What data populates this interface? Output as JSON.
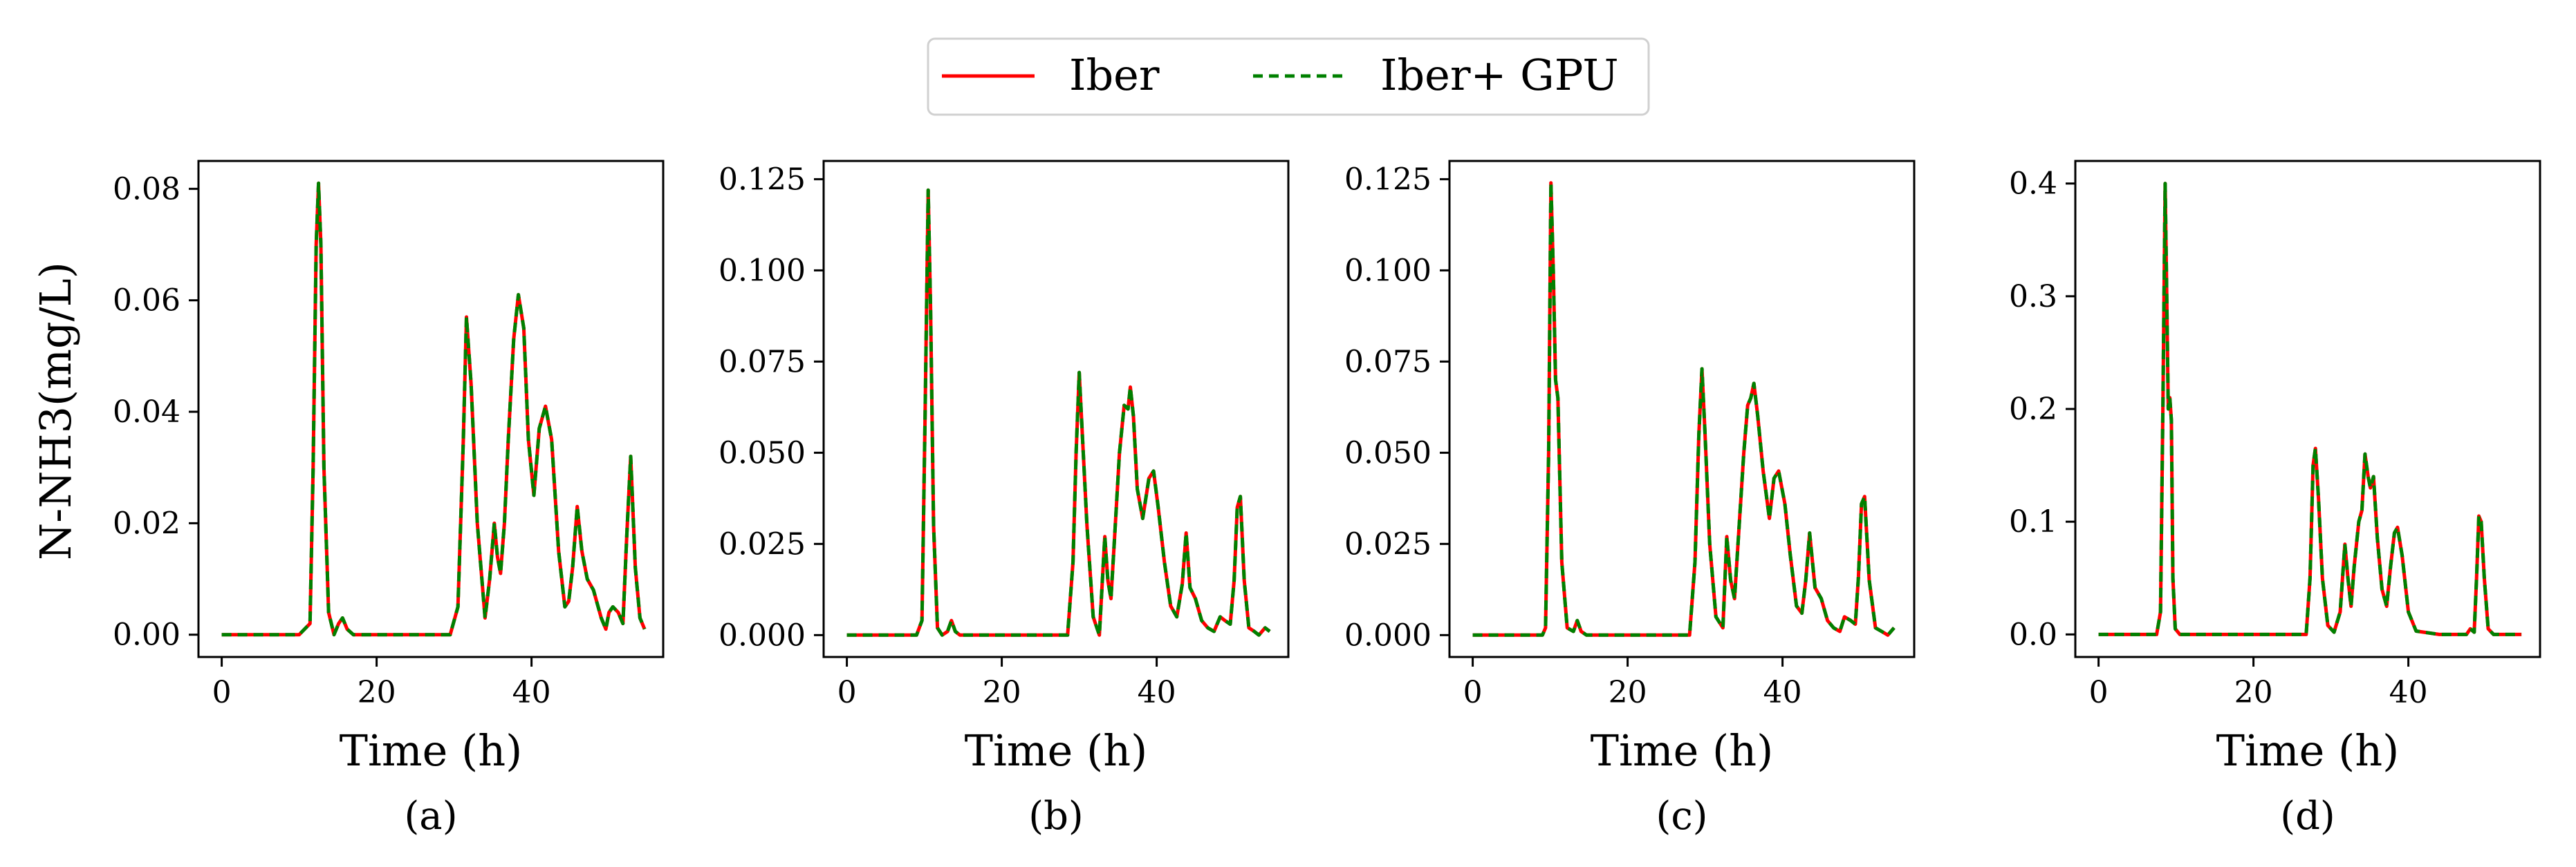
{
  "legend": {
    "entries": [
      {
        "label": "Iber",
        "color": "#ff0000",
        "style": "solid"
      },
      {
        "label": "Iber+ GPU",
        "color": "#008000",
        "style": "dashed"
      }
    ]
  },
  "ylabel": "N-NH3(mg/L)",
  "chart_data": [
    {
      "type": "line",
      "panel": "(a)",
      "xlabel": "Time (h)",
      "ylabel": "N-NH3(mg/L)",
      "xlim": [
        -3,
        57
      ],
      "ylim": [
        -0.004,
        0.085
      ],
      "xticks": [
        0,
        20,
        40
      ],
      "xtick_labels": [
        "0",
        "20",
        "40"
      ],
      "yticks": [
        0.0,
        0.02,
        0.04,
        0.06,
        0.08
      ],
      "ytick_labels": [
        "0.00",
        "0.02",
        "0.04",
        "0.06",
        "0.08"
      ],
      "series": [
        {
          "name": "Iber",
          "x": [
            0,
            10,
            11.4,
            11.8,
            12.2,
            12.5,
            12.8,
            13.2,
            13.8,
            14.5,
            15.1,
            15.6,
            16.2,
            17,
            20,
            29.5,
            30.5,
            31.2,
            31.6,
            32.2,
            33,
            34,
            34.6,
            35.2,
            35.6,
            36,
            36.5,
            37,
            37.7,
            38.3,
            39,
            39.6,
            40.3,
            41,
            41.8,
            42.6,
            43.5,
            44.3,
            44.8,
            45.3,
            45.9,
            46.5,
            47.2,
            48,
            49,
            49.6,
            50,
            50.5,
            51.2,
            51.8,
            52.3,
            52.8,
            53.4,
            54,
            54.6
          ],
          "y": [
            0,
            0,
            0.002,
            0.03,
            0.07,
            0.081,
            0.07,
            0.03,
            0.004,
            0,
            0.002,
            0.003,
            0.001,
            0,
            0,
            0,
            0.005,
            0.035,
            0.057,
            0.045,
            0.02,
            0.003,
            0.01,
            0.02,
            0.014,
            0.011,
            0.02,
            0.035,
            0.053,
            0.061,
            0.055,
            0.035,
            0.025,
            0.037,
            0.041,
            0.035,
            0.015,
            0.005,
            0.006,
            0.012,
            0.023,
            0.015,
            0.01,
            0.008,
            0.003,
            0.001,
            0.004,
            0.005,
            0.004,
            0.002,
            0.018,
            0.032,
            0.012,
            0.003,
            0.001
          ]
        },
        {
          "name": "Iber+ GPU",
          "x": [
            0,
            10,
            11.4,
            11.8,
            12.2,
            12.5,
            12.8,
            13.2,
            13.8,
            14.5,
            15.1,
            15.6,
            16.2,
            17,
            20,
            29.5,
            30.5,
            31.2,
            31.6,
            32.2,
            33,
            34,
            34.6,
            35.2,
            35.6,
            36,
            36.5,
            37,
            37.7,
            38.3,
            39,
            39.6,
            40.3,
            41,
            41.8,
            42.6,
            43.5,
            44.3,
            44.8,
            45.3,
            45.9,
            46.5,
            47.2,
            48,
            49,
            49.6,
            50,
            50.5,
            51.2,
            51.8,
            52.3,
            52.8,
            53.4,
            54,
            54.6
          ],
          "y": [
            0,
            0,
            0.002,
            0.03,
            0.07,
            0.081,
            0.07,
            0.03,
            0.004,
            0,
            0.002,
            0.003,
            0.001,
            0,
            0,
            0,
            0.005,
            0.035,
            0.057,
            0.045,
            0.02,
            0.003,
            0.01,
            0.02,
            0.014,
            0.011,
            0.02,
            0.035,
            0.053,
            0.061,
            0.055,
            0.035,
            0.025,
            0.037,
            0.041,
            0.035,
            0.015,
            0.005,
            0.006,
            0.012,
            0.023,
            0.015,
            0.01,
            0.008,
            0.003,
            0.001,
            0.004,
            0.005,
            0.004,
            0.002,
            0.018,
            0.032,
            0.012,
            0.003,
            0.001
          ]
        }
      ]
    },
    {
      "type": "line",
      "panel": "(b)",
      "xlabel": "Time (h)",
      "ylabel": "",
      "xlim": [
        -3,
        57
      ],
      "ylim": [
        -0.006,
        0.13
      ],
      "xticks": [
        0,
        20,
        40
      ],
      "xtick_labels": [
        "0",
        "20",
        "40"
      ],
      "yticks": [
        0.0,
        0.025,
        0.05,
        0.075,
        0.1,
        0.125
      ],
      "ytick_labels": [
        "0.000",
        "0.025",
        "0.050",
        "0.075",
        "0.100",
        "0.125"
      ],
      "series": [
        {
          "name": "Iber",
          "x": [
            0,
            9,
            9.7,
            10.1,
            10.5,
            10.8,
            11.2,
            11.7,
            12.3,
            13,
            13.5,
            14,
            14.6,
            16,
            28.5,
            29.2,
            29.6,
            30,
            30.4,
            31,
            31.8,
            32.6,
            33.3,
            33.7,
            34.1,
            34.6,
            35.2,
            35.8,
            36.3,
            36.6,
            37,
            37.5,
            38.2,
            39,
            39.6,
            40.2,
            41,
            41.8,
            42.6,
            43.3,
            43.8,
            44.3,
            45,
            45.8,
            46.6,
            47.4,
            48.2,
            48.8,
            49.5,
            50,
            50.4,
            50.8,
            51.3,
            51.9,
            52.6,
            53.2,
            54,
            54.6
          ],
          "y": [
            0,
            0,
            0.004,
            0.06,
            0.122,
            0.09,
            0.03,
            0.002,
            0,
            0.001,
            0.004,
            0.001,
            0,
            0,
            0,
            0.02,
            0.05,
            0.072,
            0.055,
            0.03,
            0.005,
            0,
            0.027,
            0.015,
            0.01,
            0.028,
            0.05,
            0.063,
            0.062,
            0.068,
            0.06,
            0.04,
            0.032,
            0.043,
            0.045,
            0.035,
            0.02,
            0.008,
            0.005,
            0.014,
            0.028,
            0.013,
            0.01,
            0.004,
            0.002,
            0.001,
            0.005,
            0.004,
            0.003,
            0.015,
            0.035,
            0.038,
            0.015,
            0.002,
            0.001,
            0,
            0.002,
            0.001
          ]
        },
        {
          "name": "Iber+ GPU",
          "x": [
            0,
            9,
            9.7,
            10.1,
            10.5,
            10.8,
            11.2,
            11.7,
            12.3,
            13,
            13.5,
            14,
            14.6,
            16,
            28.5,
            29.2,
            29.6,
            30,
            30.4,
            31,
            31.8,
            32.6,
            33.3,
            33.7,
            34.1,
            34.6,
            35.2,
            35.8,
            36.3,
            36.6,
            37,
            37.5,
            38.2,
            39,
            39.6,
            40.2,
            41,
            41.8,
            42.6,
            43.3,
            43.8,
            44.3,
            45,
            45.8,
            46.6,
            47.4,
            48.2,
            48.8,
            49.5,
            50,
            50.4,
            50.8,
            51.3,
            51.9,
            52.6,
            53.2,
            54,
            54.6
          ],
          "y": [
            0,
            0,
            0.004,
            0.06,
            0.122,
            0.09,
            0.03,
            0.002,
            0,
            0.001,
            0.004,
            0.001,
            0,
            0,
            0,
            0.02,
            0.05,
            0.072,
            0.055,
            0.03,
            0.005,
            0,
            0.027,
            0.015,
            0.01,
            0.028,
            0.05,
            0.063,
            0.062,
            0.068,
            0.06,
            0.04,
            0.032,
            0.043,
            0.045,
            0.035,
            0.02,
            0.008,
            0.005,
            0.014,
            0.028,
            0.013,
            0.01,
            0.004,
            0.002,
            0.001,
            0.005,
            0.004,
            0.003,
            0.015,
            0.035,
            0.038,
            0.015,
            0.002,
            0.001,
            0,
            0.002,
            0.001
          ]
        }
      ]
    },
    {
      "type": "line",
      "panel": "(c)",
      "xlabel": "Time (h)",
      "ylabel": "",
      "xlim": [
        -3,
        57
      ],
      "ylim": [
        -0.006,
        0.13
      ],
      "xticks": [
        0,
        20,
        40
      ],
      "xtick_labels": [
        "0",
        "20",
        "40"
      ],
      "yticks": [
        0.0,
        0.025,
        0.05,
        0.075,
        0.1,
        0.125
      ],
      "ytick_labels": [
        "0.000",
        "0.025",
        "0.050",
        "0.075",
        "0.100",
        "0.125"
      ],
      "series": [
        {
          "name": "Iber",
          "x": [
            0,
            9,
            9.4,
            9.8,
            10.1,
            10.4,
            10.7,
            11,
            11.5,
            12.2,
            13,
            13.5,
            14,
            14.7,
            16,
            28,
            28.7,
            29.2,
            29.6,
            30,
            30.6,
            31.4,
            32.3,
            32.8,
            33.3,
            33.8,
            34.4,
            35,
            35.5,
            35.9,
            36.3,
            36.8,
            37.5,
            38.3,
            38.9,
            39.5,
            40.3,
            41,
            41.8,
            42.5,
            43,
            43.5,
            44.2,
            45,
            45.8,
            46.6,
            47.4,
            48,
            48.8,
            49.4,
            49.8,
            50.2,
            50.6,
            51.2,
            52,
            52.8,
            53.6,
            54.4
          ],
          "y": [
            0,
            0,
            0.002,
            0.05,
            0.124,
            0.1,
            0.07,
            0.065,
            0.02,
            0.002,
            0.001,
            0.004,
            0.001,
            0,
            0,
            0,
            0.02,
            0.055,
            0.073,
            0.055,
            0.025,
            0.005,
            0.002,
            0.027,
            0.015,
            0.01,
            0.03,
            0.05,
            0.063,
            0.065,
            0.069,
            0.06,
            0.045,
            0.032,
            0.043,
            0.045,
            0.036,
            0.022,
            0.008,
            0.006,
            0.015,
            0.028,
            0.013,
            0.01,
            0.004,
            0.002,
            0.001,
            0.005,
            0.004,
            0.003,
            0.016,
            0.036,
            0.038,
            0.015,
            0.002,
            0.001,
            0,
            0.002
          ]
        },
        {
          "name": "Iber+ GPU",
          "x": [
            0,
            9,
            9.4,
            9.8,
            10.1,
            10.4,
            10.7,
            11,
            11.5,
            12.2,
            13,
            13.5,
            14,
            14.7,
            16,
            28,
            28.7,
            29.2,
            29.6,
            30,
            30.6,
            31.4,
            32.3,
            32.8,
            33.3,
            33.8,
            34.4,
            35,
            35.5,
            35.9,
            36.3,
            36.8,
            37.5,
            38.3,
            38.9,
            39.5,
            40.3,
            41,
            41.8,
            42.5,
            43,
            43.5,
            44.2,
            45,
            45.8,
            46.6,
            47.4,
            48,
            48.8,
            49.4,
            49.8,
            50.2,
            50.6,
            51.2,
            52,
            52.8,
            53.6,
            54.4
          ],
          "y": [
            0,
            0,
            0.002,
            0.05,
            0.124,
            0.1,
            0.07,
            0.065,
            0.02,
            0.002,
            0.001,
            0.004,
            0.001,
            0,
            0,
            0,
            0.02,
            0.055,
            0.073,
            0.055,
            0.025,
            0.005,
            0.002,
            0.027,
            0.015,
            0.01,
            0.03,
            0.05,
            0.063,
            0.065,
            0.069,
            0.06,
            0.045,
            0.032,
            0.043,
            0.045,
            0.036,
            0.022,
            0.008,
            0.006,
            0.015,
            0.028,
            0.013,
            0.01,
            0.004,
            0.002,
            0.001,
            0.005,
            0.004,
            0.003,
            0.016,
            0.036,
            0.038,
            0.015,
            0.002,
            0.001,
            0,
            0.002
          ]
        }
      ]
    },
    {
      "type": "line",
      "panel": "(d)",
      "xlabel": "Time (h)",
      "ylabel": "",
      "xlim": [
        -3,
        57
      ],
      "ylim": [
        -0.02,
        0.42
      ],
      "xticks": [
        0,
        20,
        40
      ],
      "xtick_labels": [
        "0",
        "20",
        "40"
      ],
      "yticks": [
        0.0,
        0.1,
        0.2,
        0.3,
        0.4
      ],
      "ytick_labels": [
        "0.0",
        "0.1",
        "0.2",
        "0.3",
        "0.4"
      ],
      "series": [
        {
          "name": "Iber",
          "x": [
            0,
            7.5,
            8,
            8.3,
            8.6,
            8.8,
            9,
            9.2,
            9.4,
            9.6,
            9.9,
            10.5,
            12,
            26.8,
            27.3,
            27.7,
            28,
            28.4,
            28.9,
            29.6,
            30.4,
            31.2,
            31.8,
            32.2,
            32.6,
            33,
            33.6,
            34,
            34.4,
            34.8,
            35.1,
            35.5,
            36,
            36.6,
            37.2,
            37.7,
            38.2,
            38.6,
            39.2,
            40,
            41,
            44,
            47.5,
            48,
            48.5,
            48.8,
            49.1,
            49.4,
            49.8,
            50.3,
            51,
            52,
            54.6
          ],
          "y": [
            0,
            0,
            0.02,
            0.2,
            0.4,
            0.3,
            0.2,
            0.21,
            0.19,
            0.05,
            0.005,
            0,
            0,
            0,
            0.05,
            0.15,
            0.165,
            0.12,
            0.05,
            0.008,
            0.002,
            0.02,
            0.08,
            0.05,
            0.025,
            0.06,
            0.1,
            0.11,
            0.16,
            0.14,
            0.13,
            0.14,
            0.085,
            0.04,
            0.025,
            0.06,
            0.09,
            0.095,
            0.07,
            0.02,
            0.003,
            0,
            0,
            0.005,
            0.002,
            0.05,
            0.105,
            0.1,
            0.05,
            0.005,
            0,
            0,
            0
          ]
        },
        {
          "name": "Iber+ GPU",
          "x": [
            0,
            7.5,
            8,
            8.3,
            8.6,
            8.8,
            9,
            9.2,
            9.4,
            9.6,
            9.9,
            10.5,
            12,
            26.8,
            27.3,
            27.7,
            28,
            28.4,
            28.9,
            29.6,
            30.4,
            31.2,
            31.8,
            32.2,
            32.6,
            33,
            33.6,
            34,
            34.4,
            34.8,
            35.1,
            35.5,
            36,
            36.6,
            37.2,
            37.7,
            38.2,
            38.6,
            39.2,
            40,
            41,
            44,
            47.5,
            48,
            48.5,
            48.8,
            49.1,
            49.4,
            49.8,
            50.3,
            51,
            52,
            54.6
          ],
          "y": [
            0,
            0,
            0.02,
            0.2,
            0.4,
            0.3,
            0.2,
            0.21,
            0.19,
            0.05,
            0.005,
            0,
            0,
            0,
            0.05,
            0.15,
            0.165,
            0.12,
            0.05,
            0.008,
            0.002,
            0.02,
            0.08,
            0.05,
            0.025,
            0.06,
            0.1,
            0.11,
            0.16,
            0.14,
            0.13,
            0.14,
            0.085,
            0.04,
            0.025,
            0.06,
            0.09,
            0.095,
            0.07,
            0.02,
            0.003,
            0,
            0,
            0.005,
            0.002,
            0.05,
            0.105,
            0.1,
            0.05,
            0.005,
            0,
            0,
            0
          ]
        }
      ]
    }
  ]
}
